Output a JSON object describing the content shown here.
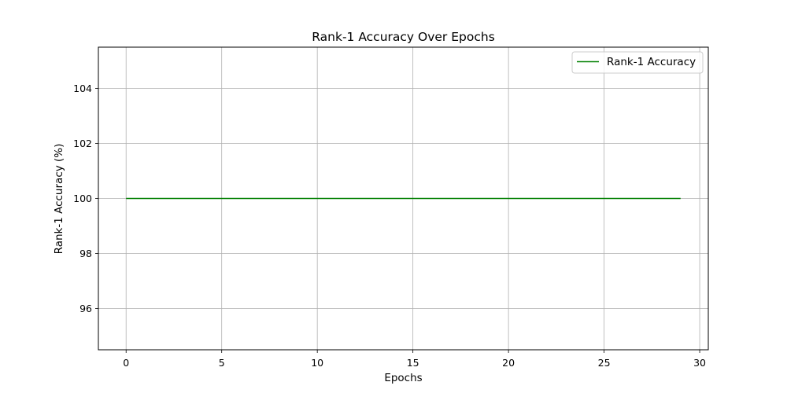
{
  "chart_data": {
    "type": "line",
    "title": "Rank-1 Accuracy Over Epochs",
    "xlabel": "Epochs",
    "ylabel": "Rank-1 Accuracy (%)",
    "xlim": [
      -1.45,
      30.45
    ],
    "ylim": [
      94.5,
      105.5
    ],
    "xticks": [
      0,
      5,
      10,
      15,
      20,
      25,
      30
    ],
    "yticks": [
      96,
      98,
      100,
      102,
      104
    ],
    "grid": true,
    "legend_position": "top-right",
    "series": [
      {
        "name": "Rank-1 Accuracy",
        "color": "#008000",
        "x": [
          0,
          1,
          2,
          3,
          4,
          5,
          6,
          7,
          8,
          9,
          10,
          11,
          12,
          13,
          14,
          15,
          16,
          17,
          18,
          19,
          20,
          21,
          22,
          23,
          24,
          25,
          26,
          27,
          28,
          29
        ],
        "y": [
          100,
          100,
          100,
          100,
          100,
          100,
          100,
          100,
          100,
          100,
          100,
          100,
          100,
          100,
          100,
          100,
          100,
          100,
          100,
          100,
          100,
          100,
          100,
          100,
          100,
          100,
          100,
          100,
          100,
          100
        ]
      }
    ]
  }
}
